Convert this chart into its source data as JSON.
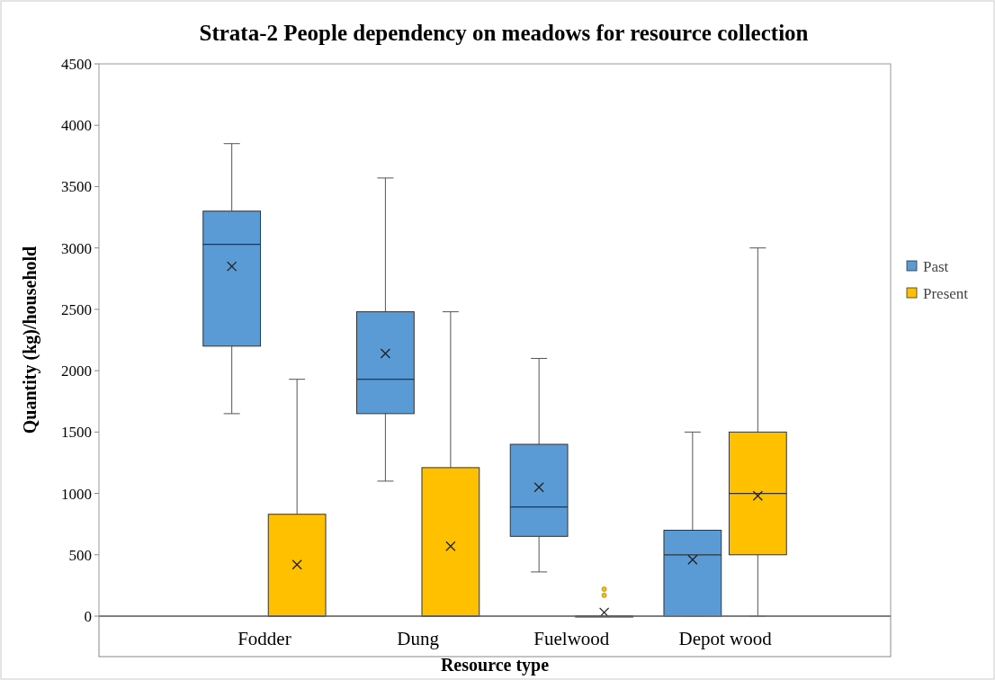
{
  "chart_data": {
    "type": "box",
    "title": "Strata-2 People dependency on meadows for resource collection",
    "xlabel": "Resource type",
    "ylabel": "Quantity (kg)/household",
    "categories": [
      "Fodder",
      "Dung",
      "Fuelwood",
      "Depot wood"
    ],
    "ylim": [
      0,
      4500
    ],
    "yticks": [
      0,
      500,
      1000,
      1500,
      2000,
      2500,
      3000,
      3500,
      4000,
      4500
    ],
    "grid": false,
    "legend": "right",
    "marker": "cross",
    "series": [
      {
        "name": "Past",
        "color": "#5b9bd5",
        "boxes": [
          {
            "low": 1650,
            "q1": 2200,
            "median": 3030,
            "q3": 3300,
            "high": 3850,
            "mean": 2850
          },
          {
            "low": 1100,
            "q1": 1650,
            "median": 1930,
            "q3": 2480,
            "high": 3570,
            "mean": 2140
          },
          {
            "low": 360,
            "q1": 650,
            "median": 890,
            "q3": 1400,
            "high": 2100,
            "mean": 1050
          },
          {
            "low": 0,
            "q1": 0,
            "median": 500,
            "q3": 700,
            "high": 1500,
            "mean": 460
          }
        ]
      },
      {
        "name": "Present",
        "color": "#ffc000",
        "boxes": [
          {
            "low": 0,
            "q1": 0,
            "median": 0,
            "q3": 830,
            "high": 1930,
            "mean": 420
          },
          {
            "low": 0,
            "q1": 0,
            "median": 0,
            "q3": 1210,
            "high": 2480,
            "mean": 570
          },
          {
            "low": 0,
            "q1": 0,
            "median": 0,
            "q3": 0,
            "high": 0,
            "mean": 30,
            "outliers": [
              170,
              220
            ]
          },
          {
            "low": 0,
            "q1": 500,
            "median": 1000,
            "q3": 1500,
            "high": 3000,
            "mean": 980
          }
        ]
      }
    ]
  }
}
